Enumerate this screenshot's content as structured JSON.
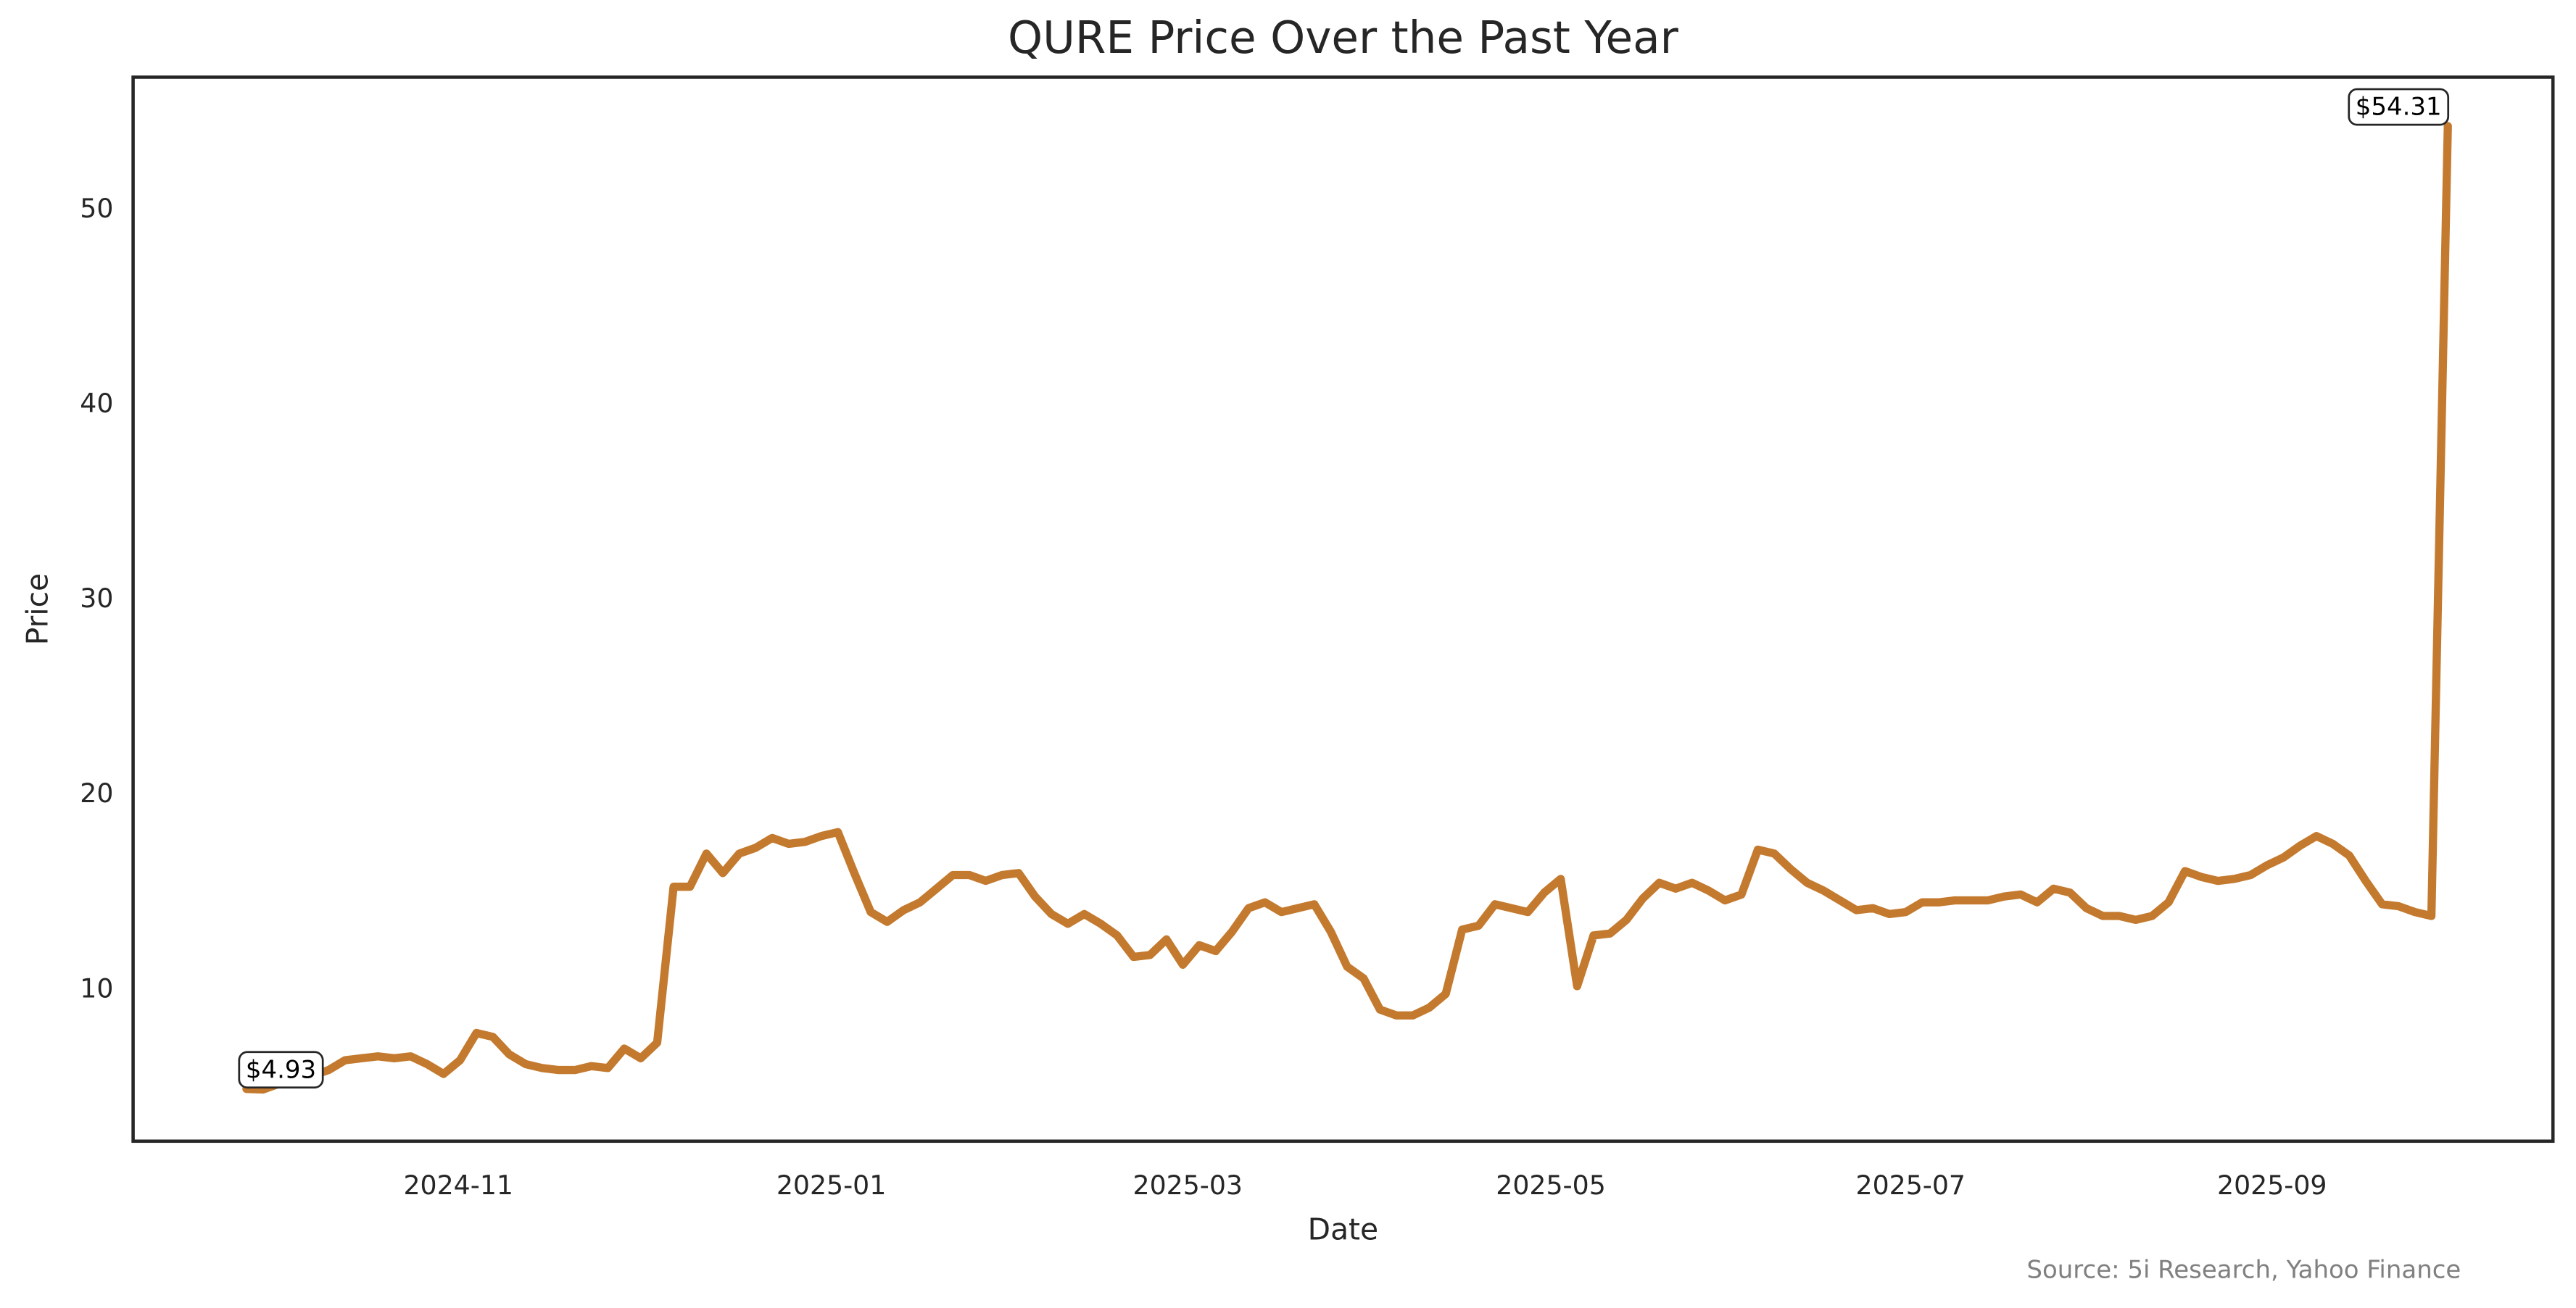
{
  "chart_data": {
    "type": "line",
    "title": "QURE Price Over the Past Year",
    "x_label": "Date",
    "y_label": "Price",
    "source": "Source: 5i Research, Yahoo Finance",
    "color": "#c47a2e",
    "grid": false,
    "values": [
      4.93,
      4.9,
      5.2,
      5.5,
      5.6,
      5.9,
      6.4,
      6.5,
      6.6,
      6.5,
      6.6,
      6.2,
      5.7,
      6.4,
      7.8,
      7.6,
      6.7,
      6.2,
      6.0,
      5.9,
      5.9,
      6.1,
      6.0,
      7.0,
      6.5,
      7.3,
      15.3,
      15.3,
      17.0,
      16.0,
      17.0,
      17.3,
      17.8,
      17.5,
      17.6,
      17.9,
      18.1,
      16.0,
      14.0,
      13.5,
      14.1,
      14.5,
      15.2,
      15.9,
      15.9,
      15.6,
      15.9,
      16.0,
      14.8,
      13.9,
      13.4,
      13.9,
      13.4,
      12.8,
      11.7,
      11.8,
      12.6,
      11.3,
      12.3,
      12.0,
      13.0,
      14.2,
      14.5,
      14.0,
      14.2,
      14.4,
      13.0,
      11.2,
      10.6,
      9.0,
      8.7,
      8.7,
      9.1,
      9.8,
      13.1,
      13.3,
      14.4,
      14.2,
      14.0,
      15.0,
      15.7,
      10.2,
      12.8,
      12.9,
      13.6,
      14.7,
      15.5,
      15.2,
      15.5,
      15.1,
      14.6,
      14.9,
      17.2,
      17.0,
      16.2,
      15.5,
      15.1,
      14.6,
      14.1,
      14.2,
      13.9,
      14.0,
      14.5,
      14.5,
      14.6,
      14.6,
      14.6,
      14.8,
      14.9,
      14.5,
      15.2,
      15.0,
      14.2,
      13.8,
      13.8,
      13.6,
      13.8,
      14.5,
      16.1,
      15.8,
      15.6,
      15.7,
      15.9,
      16.4,
      16.8,
      17.4,
      17.9,
      17.5,
      16.9,
      15.6,
      14.4,
      14.3,
      14.0,
      13.8,
      54.31
    ],
    "value_labels": [
      "$4.93",
      null,
      null,
      null,
      null,
      null,
      null,
      null,
      null,
      null,
      null,
      null,
      null,
      null,
      null,
      null,
      null,
      null,
      null,
      null,
      null,
      null,
      null,
      null,
      null,
      null,
      null,
      null,
      null,
      null,
      null,
      null,
      null,
      null,
      null,
      null,
      null,
      null,
      null,
      null,
      null,
      null,
      null,
      null,
      null,
      null,
      null,
      null,
      null,
      null,
      null,
      null,
      null,
      null,
      null,
      null,
      null,
      null,
      null,
      null,
      null,
      null,
      null,
      null,
      null,
      null,
      null,
      null,
      null,
      null,
      null,
      null,
      null,
      null,
      null,
      null,
      null,
      null,
      null,
      null,
      null,
      null,
      null,
      null,
      null,
      null,
      null,
      null,
      null,
      null,
      null,
      null,
      null,
      null,
      null,
      null,
      null,
      null,
      null,
      null,
      null,
      null,
      null,
      null,
      null,
      null,
      null,
      null,
      null,
      null,
      null,
      null,
      null,
      null,
      null,
      null,
      null,
      null,
      null,
      null,
      null,
      null,
      null,
      null,
      null,
      null,
      null,
      null,
      null,
      null,
      null,
      null,
      null,
      null,
      "$54.31"
    ],
    "xlim": [
      -6.9,
      140.4
    ],
    "xticks": [
      {
        "value": 12.9,
        "label": "2024-11"
      },
      {
        "value": 35.6,
        "label": "2025-01"
      },
      {
        "value": 57.3,
        "label": "2025-03"
      },
      {
        "value": 79.4,
        "label": "2025-05"
      },
      {
        "value": 101.3,
        "label": "2025-07"
      },
      {
        "value": 123.3,
        "label": "2025-09"
      }
    ],
    "ylim": [
      2.25,
      56.82
    ],
    "yticks": [
      10,
      20,
      30,
      40,
      50
    ]
  }
}
